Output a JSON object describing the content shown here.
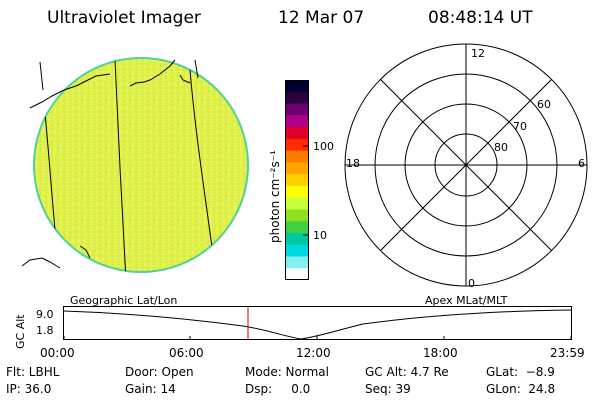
{
  "header": {
    "title": "Ultraviolet Imager",
    "date": "12 Mar 07",
    "time": "08:48:14 UT"
  },
  "colorbar": {
    "unit_label": "photon cm⁻²s⁻¹",
    "ticks": [
      "100",
      "10"
    ],
    "scale": "log",
    "colors": [
      "#000030",
      "#2a0040",
      "#6a0070",
      "#b0008a",
      "#e00028",
      "#ff2a00",
      "#ff7a00",
      "#ffa500",
      "#ffd000",
      "#ffff00",
      "#c8ff3a",
      "#90e020",
      "#40d040",
      "#00c8a0",
      "#00d8e0",
      "#80f0f0",
      "#ffffff"
    ]
  },
  "polar": {
    "mlt_labels": [
      "12",
      "18",
      "6",
      "0"
    ],
    "lat_labels": [
      "60",
      "70",
      "80"
    ]
  },
  "timeline": {
    "left_title": "Geographic Lat/Lon",
    "right_title": "Apex MLat/MLT",
    "y_axis_label": "GC Alt",
    "y_ticks": [
      "9.0",
      "1.8"
    ],
    "x_ticks": [
      "00:00",
      "06:00",
      "12:00",
      "18:00",
      "23:59"
    ],
    "marker_color": "#cc0000"
  },
  "status": {
    "filter": "Flt: LBHL",
    "ip": "IP: 36.0",
    "door": "Door: Open",
    "gain": "Gain: 14",
    "mode": "Mode: Normal",
    "dsp": "Dsp:     0.0",
    "gc_alt": "GC Alt: 4.7 Re",
    "seq": "Seq: 39",
    "glat": "GLat:  −8.9",
    "glon": "GLon:  24.8"
  },
  "colors": {
    "globe_fill": "#e6f24a",
    "globe_edge": "#4fd29a",
    "colorbar_frame": "#000000"
  }
}
